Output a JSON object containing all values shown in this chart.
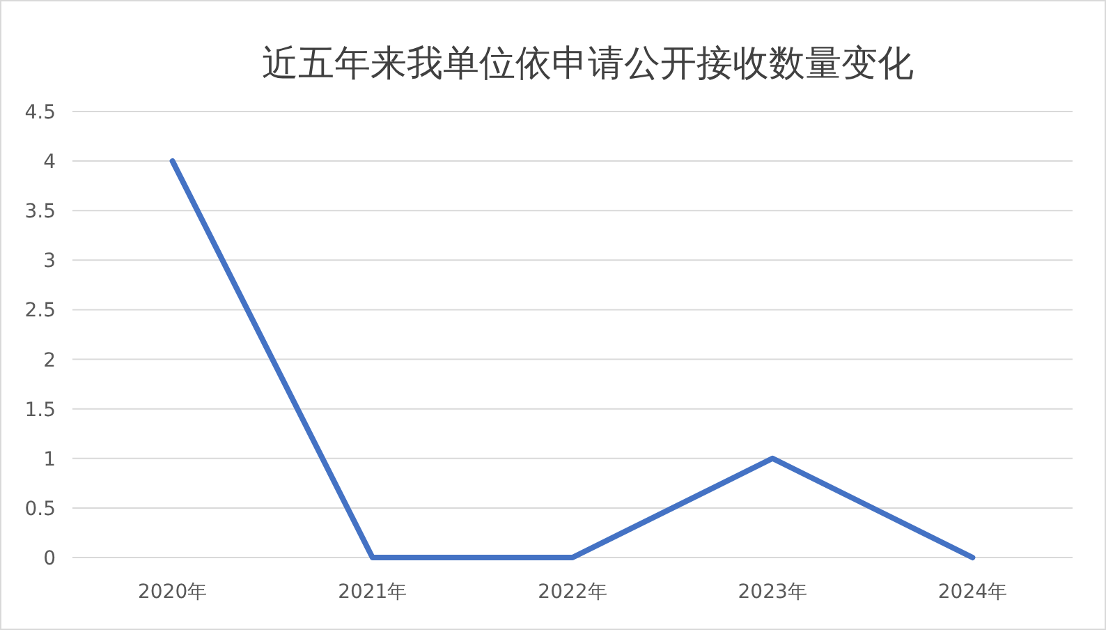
{
  "chart_data": {
    "type": "line",
    "title": "近五年来我单位依申请公开接收数量变化",
    "categories": [
      "2020年",
      "2021年",
      "2022年",
      "2023年",
      "2024年"
    ],
    "series": [
      {
        "color": "#4472c4",
        "values": [
          4,
          0,
          0,
          1,
          0
        ]
      }
    ],
    "ylim": [
      0,
      4.5
    ],
    "yticks": [
      0,
      0.5,
      1,
      1.5,
      2,
      2.5,
      3,
      3.5,
      4,
      4.5
    ],
    "grid": "y",
    "line_style": "solid"
  }
}
